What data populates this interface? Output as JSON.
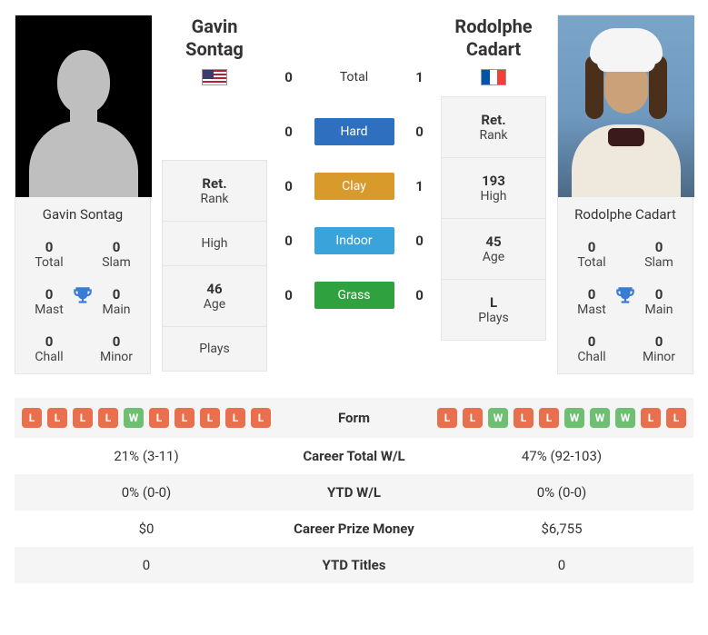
{
  "colors": {
    "win": "#6fbf73",
    "loss": "#e9704f",
    "hard": "#2e6fbf",
    "clay": "#d79a2b",
    "indoor": "#3aa3d9",
    "grass": "#2fa13f",
    "trophy": "#3a7bd5",
    "card_bg": "#f4f4f4"
  },
  "player1": {
    "name": "Gavin Sontag",
    "country": "us",
    "photo": "silhouette",
    "titles": {
      "total": "0",
      "slam": "0",
      "mast": "0",
      "main": "0",
      "chall": "0",
      "minor": "0"
    },
    "meta": {
      "rank_ret": "Ret.",
      "rank": "Rank",
      "high": "",
      "age": "46",
      "plays": ""
    }
  },
  "player2": {
    "name": "Rodolphe Cadart",
    "country": "fr",
    "photo": "real",
    "titles": {
      "total": "0",
      "slam": "0",
      "mast": "0",
      "main": "0",
      "chall": "0",
      "minor": "0"
    },
    "meta": {
      "rank_ret": "Ret.",
      "rank": "Rank",
      "high": "193",
      "age": "45",
      "plays": "L"
    }
  },
  "labels": {
    "total": "Total",
    "slam": "Slam",
    "mast": "Mast",
    "main": "Main",
    "chall": "Chall",
    "minor": "Minor",
    "rank": "Rank",
    "high": "High",
    "age": "Age",
    "plays": "Plays"
  },
  "h2h": {
    "rows": [
      {
        "label": "Total",
        "p1": "0",
        "p2": "1",
        "badge": "total"
      },
      {
        "label": "Hard",
        "p1": "0",
        "p2": "0",
        "badge": "hard"
      },
      {
        "label": "Clay",
        "p1": "0",
        "p2": "1",
        "badge": "clay"
      },
      {
        "label": "Indoor",
        "p1": "0",
        "p2": "0",
        "badge": "indoor"
      },
      {
        "label": "Grass",
        "p1": "0",
        "p2": "0",
        "badge": "grass"
      }
    ]
  },
  "form": {
    "p1": [
      "L",
      "L",
      "L",
      "L",
      "W",
      "L",
      "L",
      "L",
      "L",
      "L"
    ],
    "p2": [
      "L",
      "L",
      "W",
      "L",
      "L",
      "W",
      "W",
      "W",
      "L",
      "L"
    ]
  },
  "stats_table": {
    "rows": [
      {
        "key": "Form"
      },
      {
        "key": "Career Total W/L",
        "p1": "21% (3-11)",
        "p2": "47% (92-103)"
      },
      {
        "key": "YTD W/L",
        "p1": "0% (0-0)",
        "p2": "0% (0-0)"
      },
      {
        "key": "Career Prize Money",
        "p1": "$0",
        "p2": "$6,755"
      },
      {
        "key": "YTD Titles",
        "p1": "0",
        "p2": "0"
      }
    ]
  }
}
